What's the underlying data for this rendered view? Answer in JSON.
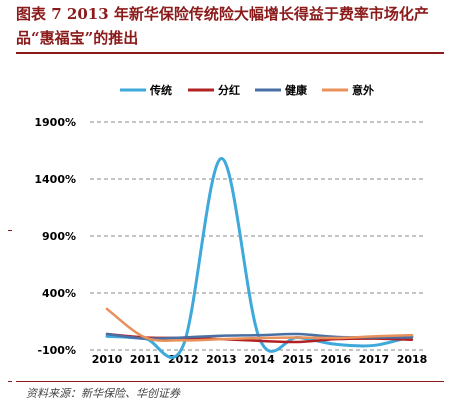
{
  "figure": {
    "title": "图表 7   2013 年新华保险传统险大幅增长得益于费率市场化产品“惠福宝”的推出",
    "source": "资料来源：新华保险、华创证券"
  },
  "chart_data": {
    "type": "line",
    "title": "",
    "xlabel": "",
    "ylabel": "",
    "x": [
      "2010",
      "2011",
      "2012",
      "2013",
      "2014",
      "2015",
      "2016",
      "2017",
      "2018"
    ],
    "ylim": [
      -100,
      1900
    ],
    "yticks": [
      "-100%",
      "400%",
      "900%",
      "1400%",
      "1900%"
    ],
    "ytick_values": [
      -100,
      400,
      900,
      1400,
      1900
    ],
    "grid": "horizontal-dashed",
    "legend_position": "top",
    "series": [
      {
        "name": "传统",
        "color": "#3FA9DC",
        "values": [
          20,
          0,
          -60,
          1580,
          0,
          10,
          -50,
          -60,
          20
        ]
      },
      {
        "name": "分红",
        "color": "#B22222",
        "values": [
          40,
          10,
          5,
          -5,
          -20,
          -30,
          -5,
          0,
          -10
        ]
      },
      {
        "name": "健康",
        "color": "#4A6FA5",
        "values": [
          40,
          0,
          10,
          25,
          30,
          40,
          15,
          10,
          10
        ]
      },
      {
        "name": "意外",
        "color": "#E8915A",
        "values": [
          260,
          10,
          -15,
          -5,
          5,
          10,
          5,
          20,
          30
        ]
      }
    ]
  }
}
